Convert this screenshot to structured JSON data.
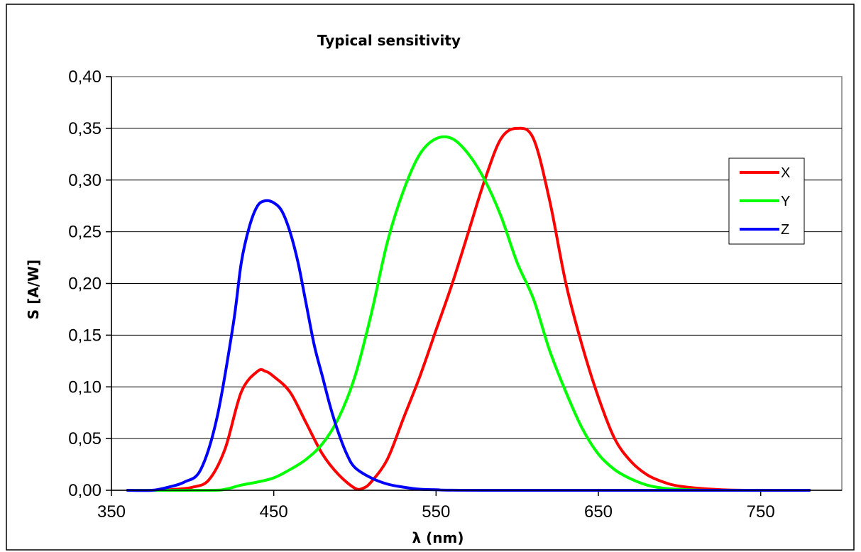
{
  "chart_data": {
    "type": "line",
    "title": "Typical sensitivity",
    "xlabel": "λ (nm)",
    "ylabel": "S [A/W]",
    "xlim": [
      350,
      800
    ],
    "ylim": [
      0,
      0.4
    ],
    "x_ticks": [
      350,
      450,
      550,
      650,
      750
    ],
    "x_tick_labels": [
      "350",
      "450",
      "550",
      "650",
      "750"
    ],
    "y_ticks": [
      0,
      0.05,
      0.1,
      0.15,
      0.2,
      0.25,
      0.3,
      0.35,
      0.4
    ],
    "y_tick_labels": [
      "0,00",
      "0,05",
      "0,10",
      "0,15",
      "0,20",
      "0,25",
      "0,30",
      "0,35",
      "0,40"
    ],
    "grid": "horizontal",
    "legend_position": "right",
    "series": [
      {
        "name": "X",
        "color": "#ff0000",
        "points": [
          [
            360,
            0
          ],
          [
            380,
            0
          ],
          [
            390,
            0.001
          ],
          [
            400,
            0.003
          ],
          [
            410,
            0.01
          ],
          [
            420,
            0.04
          ],
          [
            430,
            0.095
          ],
          [
            440,
            0.115
          ],
          [
            445,
            0.115
          ],
          [
            450,
            0.11
          ],
          [
            460,
            0.095
          ],
          [
            470,
            0.065
          ],
          [
            480,
            0.035
          ],
          [
            490,
            0.015
          ],
          [
            500,
            0.002
          ],
          [
            505,
            0.002
          ],
          [
            510,
            0.008
          ],
          [
            520,
            0.03
          ],
          [
            530,
            0.07
          ],
          [
            540,
            0.11
          ],
          [
            550,
            0.155
          ],
          [
            560,
            0.2
          ],
          [
            570,
            0.25
          ],
          [
            580,
            0.3
          ],
          [
            590,
            0.34
          ],
          [
            600,
            0.35
          ],
          [
            610,
            0.34
          ],
          [
            620,
            0.28
          ],
          [
            630,
            0.2
          ],
          [
            640,
            0.14
          ],
          [
            650,
            0.09
          ],
          [
            660,
            0.05
          ],
          [
            670,
            0.028
          ],
          [
            680,
            0.015
          ],
          [
            690,
            0.008
          ],
          [
            700,
            0.004
          ],
          [
            720,
            0.001
          ],
          [
            740,
            0
          ],
          [
            780,
            0
          ]
        ]
      },
      {
        "name": "Y",
        "color": "#00ff00",
        "points": [
          [
            360,
            0
          ],
          [
            410,
            0
          ],
          [
            420,
            0.001
          ],
          [
            430,
            0.005
          ],
          [
            440,
            0.008
          ],
          [
            450,
            0.012
          ],
          [
            460,
            0.02
          ],
          [
            470,
            0.03
          ],
          [
            480,
            0.045
          ],
          [
            490,
            0.07
          ],
          [
            500,
            0.11
          ],
          [
            510,
            0.17
          ],
          [
            520,
            0.24
          ],
          [
            530,
            0.29
          ],
          [
            540,
            0.325
          ],
          [
            550,
            0.34
          ],
          [
            560,
            0.34
          ],
          [
            570,
            0.325
          ],
          [
            580,
            0.3
          ],
          [
            590,
            0.265
          ],
          [
            600,
            0.22
          ],
          [
            610,
            0.185
          ],
          [
            620,
            0.135
          ],
          [
            630,
            0.095
          ],
          [
            640,
            0.06
          ],
          [
            650,
            0.035
          ],
          [
            660,
            0.02
          ],
          [
            670,
            0.011
          ],
          [
            680,
            0.005
          ],
          [
            690,
            0.002
          ],
          [
            700,
            0.001
          ],
          [
            720,
            0
          ],
          [
            780,
            0
          ]
        ]
      },
      {
        "name": "Z",
        "color": "#0000ff",
        "points": [
          [
            360,
            0
          ],
          [
            375,
            0
          ],
          [
            385,
            0.003
          ],
          [
            395,
            0.008
          ],
          [
            405,
            0.02
          ],
          [
            415,
            0.07
          ],
          [
            425,
            0.16
          ],
          [
            430,
            0.22
          ],
          [
            435,
            0.255
          ],
          [
            440,
            0.275
          ],
          [
            445,
            0.28
          ],
          [
            450,
            0.278
          ],
          [
            455,
            0.27
          ],
          [
            460,
            0.25
          ],
          [
            465,
            0.22
          ],
          [
            470,
            0.18
          ],
          [
            475,
            0.14
          ],
          [
            480,
            0.11
          ],
          [
            485,
            0.08
          ],
          [
            490,
            0.055
          ],
          [
            495,
            0.035
          ],
          [
            500,
            0.022
          ],
          [
            510,
            0.012
          ],
          [
            520,
            0.006
          ],
          [
            530,
            0.003
          ],
          [
            540,
            0.001
          ],
          [
            550,
            0.0005
          ],
          [
            580,
            0
          ],
          [
            780,
            0
          ]
        ]
      }
    ]
  }
}
